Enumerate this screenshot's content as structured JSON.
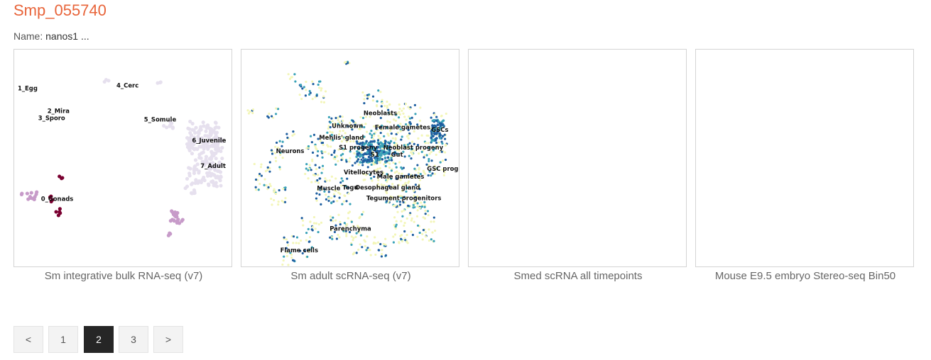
{
  "gene": {
    "title": "Smp_055740",
    "name_label": "Name:",
    "name_value": "nanos1 ..."
  },
  "cards": [
    {
      "caption": "Sm integrative bulk RNA-seq (v7)"
    },
    {
      "caption": "Sm adult scRNA-seq (v7)"
    },
    {
      "caption": "Smed scRNA all timepoints"
    },
    {
      "caption": "Mouse E9.5 embryo Stereo-seq Bin50"
    }
  ],
  "bulk_plot": {
    "labels": [
      "1_Egg",
      "4_Cerc",
      "2_Mira",
      "3_Sporo",
      "5_Somule",
      "6_Juvenile",
      "7_Adult",
      "0_Gonads"
    ],
    "colors": {
      "high": "#7a0030",
      "mid": "#c79bc9",
      "low": "#e6e0ee"
    }
  },
  "sc_plot": {
    "labels": [
      "Neoblasts",
      "Unknown",
      "Female gametes",
      "GSCs",
      "Mehlis' gland",
      "S1 progeny",
      "Neoblast progeny",
      "S1",
      "Gut",
      "Neurons",
      "Vitellocytes",
      "Male gametes",
      "GSC progeny",
      "Muscle",
      "Tegu",
      "Oesophageal gland",
      "Tegument progenitors",
      "Parenchyma",
      "Flame cells"
    ],
    "colors": {
      "high": "#1f5fa0",
      "mid": "#3aa3b8",
      "low": "#f3f6b8"
    }
  },
  "pagination": {
    "prev": "<",
    "pages": [
      "1",
      "2",
      "3"
    ],
    "active": "2",
    "next": ">"
  }
}
